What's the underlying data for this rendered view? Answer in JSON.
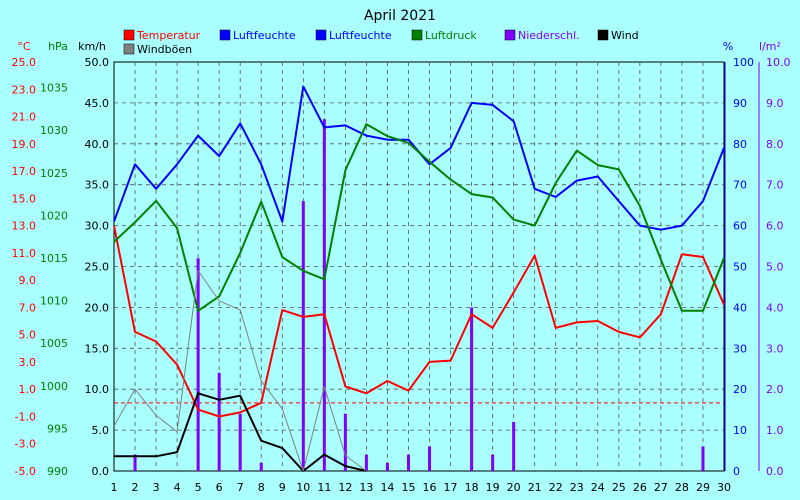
{
  "chart_data": {
    "type": "line",
    "title": "April 2021",
    "x": [
      1,
      2,
      3,
      4,
      5,
      6,
      7,
      8,
      9,
      10,
      11,
      12,
      13,
      14,
      15,
      16,
      17,
      18,
      19,
      20,
      21,
      22,
      23,
      24,
      25,
      26,
      27,
      28,
      29,
      30
    ],
    "xlim": [
      1,
      30
    ],
    "grid": true,
    "legend_position": "top",
    "axes": [
      {
        "id": "temp",
        "label": "°C",
        "color": "#ff0000",
        "ticks": [
          "25.0",
          "23.0",
          "21.0",
          "19.0",
          "17.0",
          "15.0",
          "13.0",
          "11.0",
          "9.0",
          "7.0",
          "5.0",
          "3.0",
          "1.0",
          "-1.0",
          "-3.0",
          "-5.0"
        ],
        "range": [
          -5,
          25
        ]
      },
      {
        "id": "press",
        "label": "hPa",
        "color": "#008000",
        "ticks": [
          "1035",
          "1030",
          "1025",
          "1020",
          "1015",
          "1010",
          "1005",
          "1000",
          "995",
          "990"
        ],
        "range": [
          990,
          1038
        ]
      },
      {
        "id": "wind",
        "label": "km/h",
        "color": "#000000",
        "ticks": [
          "50.0",
          "45.0",
          "40.0",
          "35.0",
          "30.0",
          "25.0",
          "20.0",
          "15.0",
          "10.0",
          "5.0",
          "0.0"
        ],
        "range": [
          0,
          50
        ]
      },
      {
        "id": "hum",
        "label": "%",
        "color": "#0000ff",
        "ticks": [
          "100",
          "90",
          "80",
          "70",
          "60",
          "50",
          "40",
          "30",
          "20",
          "10",
          "0"
        ],
        "range": [
          0,
          100
        ]
      },
      {
        "id": "rain",
        "label": "l/m²",
        "color": "#8000ff",
        "ticks": [
          "10.0",
          "9.0",
          "8.0",
          "7.0",
          "6.0",
          "5.0",
          "4.0",
          "3.0",
          "2.0",
          "1.0",
          "0.0"
        ],
        "range": [
          0,
          10
        ]
      }
    ],
    "legend": [
      {
        "label": "Temperatur",
        "color": "#ff0000"
      },
      {
        "label": "Luftfeuchte",
        "color": "#0000ff"
      },
      {
        "label": "Luftfeuchte",
        "color": "#0000ff"
      },
      {
        "label": "Luftdruck",
        "color": "#008000"
      },
      {
        "label": "Niederschl.",
        "color": "#8000ff"
      },
      {
        "label": "Wind",
        "color": "#000000"
      },
      {
        "label": "Windböen",
        "color": "#808080"
      }
    ],
    "series": [
      {
        "name": "Temperatur",
        "axis": "temp",
        "kind": "line",
        "color": "#ff0000",
        "values": [
          13.0,
          5.2,
          4.5,
          2.8,
          -0.5,
          -1.0,
          -0.7,
          0.0,
          6.8,
          6.3,
          6.5,
          1.2,
          0.7,
          1.6,
          0.9,
          3.0,
          3.1,
          6.5,
          5.5,
          8.1,
          10.8,
          5.5,
          5.9,
          6.0,
          5.2,
          4.8,
          6.5,
          10.9,
          10.7,
          7.2
        ]
      },
      {
        "name": "Luftfeuchte",
        "axis": "hum",
        "kind": "line",
        "color": "#0000ff",
        "values": [
          61,
          75,
          69,
          75,
          82,
          77,
          85,
          75,
          61,
          94,
          84,
          84.5,
          82,
          81,
          81,
          75,
          79,
          90,
          89.5,
          85.5,
          69,
          67,
          71,
          72,
          66,
          60,
          59,
          60,
          66,
          79
        ]
      },
      {
        "name": "Luftdruck",
        "axis": "press",
        "kind": "line",
        "color": "#008000",
        "values": [
          1016.9,
          1019.2,
          1021.7,
          1018.5,
          1008.8,
          1010.5,
          1015.6,
          1021.6,
          1015.1,
          1013.5,
          1012.5,
          1025.3,
          1030.7,
          1029.3,
          1028.5,
          1026.3,
          1024.2,
          1022.5,
          1022.1,
          1019.5,
          1018.8,
          1023.8,
          1027.6,
          1025.9,
          1025.4,
          1021.1,
          1014.8,
          1008.8,
          1008.8,
          1015.0
        ]
      },
      {
        "name": "Wind",
        "axis": "wind",
        "kind": "line",
        "color": "#000000",
        "values": [
          1.8,
          1.8,
          1.8,
          2.3,
          9.5,
          8.7,
          9.2,
          3.7,
          2.8,
          0.0,
          2.0,
          0.6,
          0.0,
          null,
          null,
          null,
          null,
          null,
          null,
          null,
          null,
          null,
          null,
          null,
          null,
          null,
          null,
          null,
          null,
          null
        ]
      },
      {
        "name": "Windböen",
        "axis": "wind",
        "kind": "line",
        "color": "#808080",
        "values": [
          5.5,
          10.0,
          6.8,
          4.8,
          24.5,
          20.8,
          19.7,
          11.0,
          7.6,
          0.0,
          10.3,
          1.9,
          0.0,
          null,
          null,
          null,
          null,
          null,
          null,
          null,
          null,
          null,
          null,
          null,
          null,
          null,
          null,
          null,
          null,
          null
        ]
      },
      {
        "name": "Niederschl.",
        "axis": "rain",
        "kind": "bar",
        "color": "#8000ff",
        "values": [
          0,
          0.4,
          0,
          0,
          5.2,
          2.4,
          1.4,
          0.2,
          0,
          6.6,
          8.6,
          1.4,
          0.4,
          0.2,
          0.4,
          0.6,
          0,
          4.0,
          0.4,
          1.2,
          0,
          0,
          0,
          0,
          0,
          0,
          0,
          0,
          0.6,
          0
        ]
      }
    ],
    "reference_lines": [
      {
        "axis": "temp",
        "value": 0,
        "color": "#ff0000",
        "style": "dashed"
      }
    ]
  }
}
